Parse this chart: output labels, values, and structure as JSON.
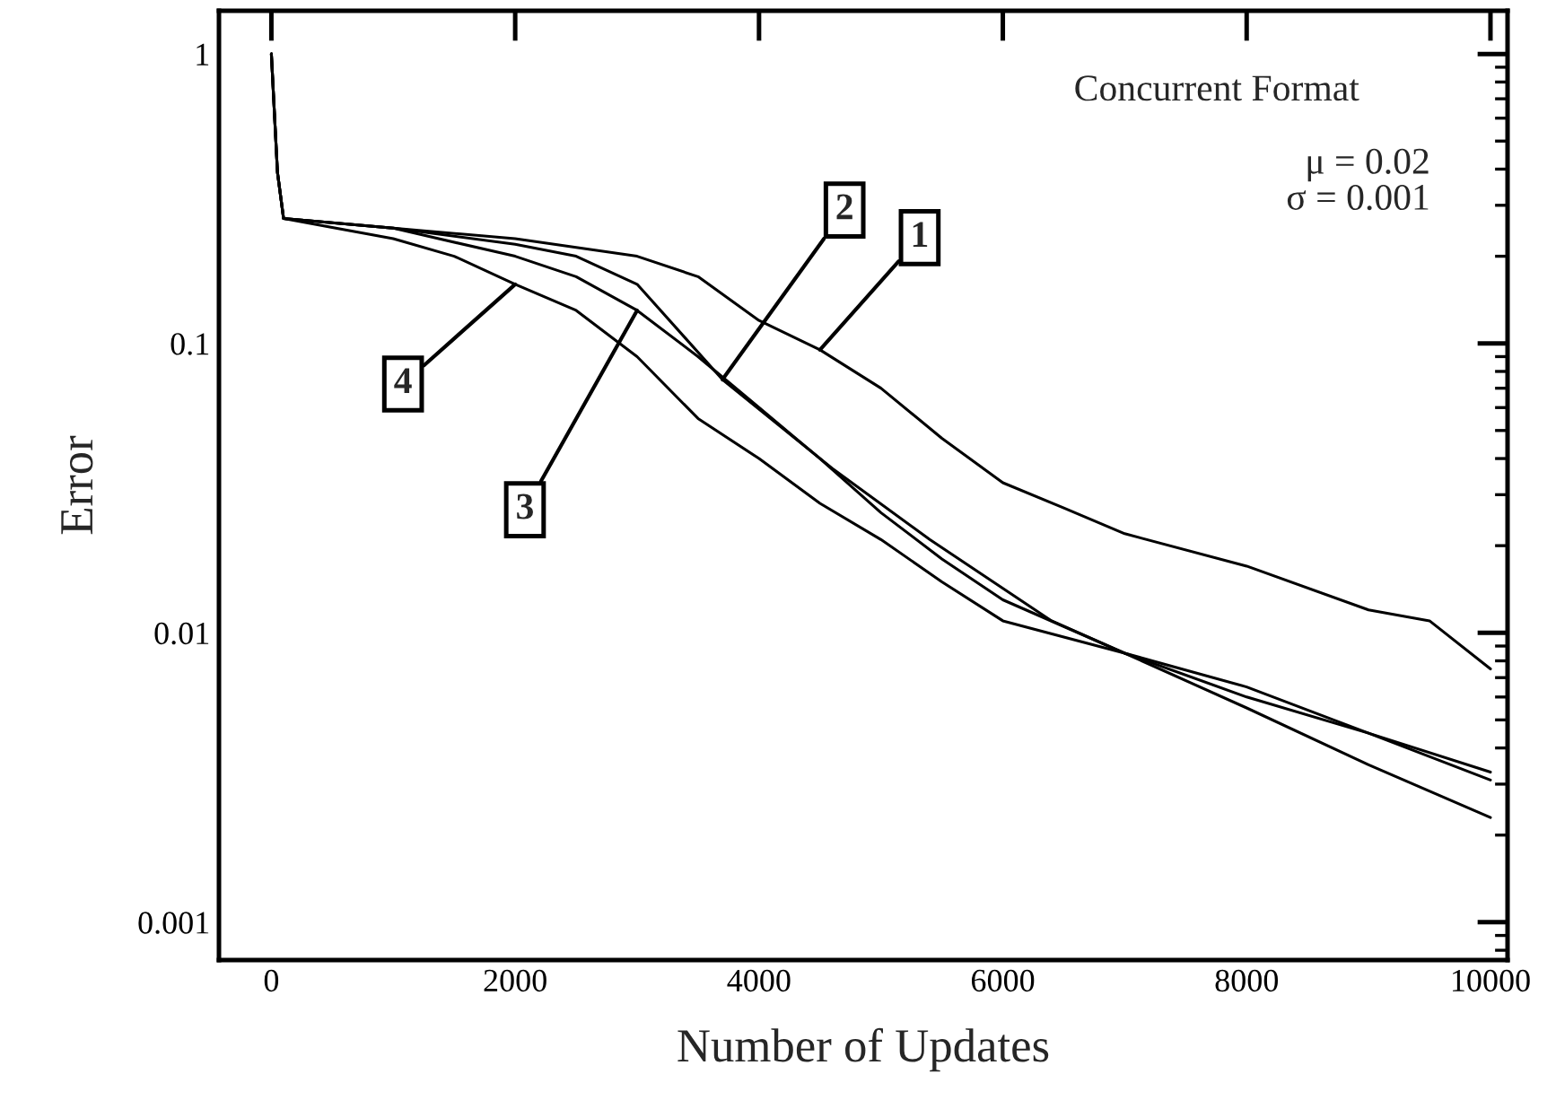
{
  "chart_data": {
    "type": "line",
    "xlabel": "Number of Updates",
    "ylabel": "Error",
    "log": "y",
    "grid": false,
    "marker": "none",
    "line_style": "solid",
    "xlim": [
      -430,
      10140
    ],
    "xticks": [
      0,
      2000,
      4000,
      6000,
      8000,
      10000
    ],
    "ylim": [
      0.00074,
      1.41
    ],
    "yticks": [
      1,
      0.1,
      0.01,
      0.001
    ],
    "series": [
      {
        "color": "#000000",
        "x": [
          0,
          50,
          100,
          1000,
          2000,
          3000,
          3500,
          4000,
          4500,
          5000,
          5500,
          6000,
          6500,
          7000,
          8000,
          9000,
          9500,
          10000
        ],
        "values": [
          1.0,
          0.39,
          0.27,
          0.25,
          0.23,
          0.2,
          0.17,
          0.12,
          0.095,
          0.07,
          0.047,
          0.033,
          0.027,
          0.022,
          0.017,
          0.012,
          0.011,
          0.0075
        ]
      },
      {
        "color": "#000000",
        "x": [
          0,
          50,
          100,
          1000,
          2000,
          2500,
          3000,
          3700,
          4600,
          5400,
          6400,
          7000,
          8000,
          9000,
          10000
        ],
        "values": [
          1.0,
          0.39,
          0.27,
          0.25,
          0.22,
          0.2,
          0.16,
          0.075,
          0.037,
          0.021,
          0.011,
          0.0085,
          0.006,
          0.0045,
          0.0033
        ]
      },
      {
        "color": "#000000",
        "x": [
          0,
          50,
          100,
          1000,
          2000,
          2500,
          3000,
          3500,
          4000,
          4500,
          5000,
          5500,
          6000,
          7000,
          8000,
          9000,
          10000
        ],
        "values": [
          1.0,
          0.39,
          0.27,
          0.25,
          0.2,
          0.17,
          0.13,
          0.09,
          0.06,
          0.04,
          0.026,
          0.018,
          0.013,
          0.0085,
          0.0065,
          0.0045,
          0.0031
        ]
      },
      {
        "color": "#000000",
        "x": [
          0,
          50,
          100,
          1000,
          1500,
          2000,
          2500,
          3000,
          3500,
          4000,
          4500,
          5000,
          5500,
          6000,
          7000,
          8000,
          9000,
          10000
        ],
        "values": [
          1.0,
          0.39,
          0.27,
          0.23,
          0.2,
          0.16,
          0.13,
          0.09,
          0.055,
          0.04,
          0.028,
          0.021,
          0.015,
          0.011,
          0.0085,
          0.0055,
          0.0035,
          0.0023
        ]
      }
    ],
    "annotations": [
      "Concurrent Format",
      "μ = 0.02",
      "σ = 0.001",
      {
        "text": "1",
        "x": 4500,
        "y": 0.095
      },
      {
        "text": "2",
        "x": 3700,
        "y": 0.075
      },
      {
        "text": "3",
        "x": 3000,
        "y": 0.13
      },
      {
        "text": "4",
        "x": 2000,
        "y": 0.16
      }
    ]
  }
}
